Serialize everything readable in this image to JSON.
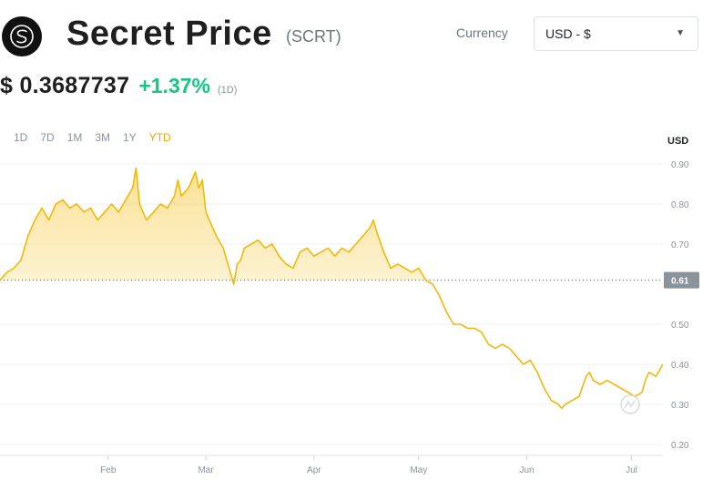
{
  "header": {
    "title": "Secret Price",
    "ticker": "(SCRT)",
    "currency_label": "Currency",
    "currency_value": "USD - $",
    "logo_icon": "secret-network-logo"
  },
  "price": {
    "value": "$ 0.3687737",
    "change": "+1.37%",
    "period": "(1D)"
  },
  "ranges": [
    {
      "label": "1D",
      "active": false
    },
    {
      "label": "7D",
      "active": false
    },
    {
      "label": "1M",
      "active": false
    },
    {
      "label": "3M",
      "active": false
    },
    {
      "label": "1Y",
      "active": false
    },
    {
      "label": "YTD",
      "active": true
    }
  ],
  "colors": {
    "line": "#f0b90b",
    "fill_top": "#f8d66b",
    "badge": "#8a939b",
    "positive": "#16c784",
    "active_tab": "#f0a500"
  },
  "chart_data": {
    "type": "area",
    "ylabel": "USD",
    "ylim": [
      0.18,
      0.93
    ],
    "yticks": [
      0.9,
      0.8,
      0.7,
      0.61,
      0.5,
      0.4,
      0.3,
      0.2
    ],
    "yticks_labels": [
      "0.90",
      "0.80",
      "0.70",
      "0.61",
      "0.50",
      "0.40",
      "0.30",
      "0.20"
    ],
    "reference_value": 0.61,
    "reference_label": "0.61",
    "x_domain": [
      0,
      190
    ],
    "x_ticks": [
      {
        "label": "Feb",
        "x": 31
      },
      {
        "label": "Mar",
        "x": 59
      },
      {
        "label": "Apr",
        "x": 90
      },
      {
        "label": "May",
        "x": 120
      },
      {
        "label": "Jun",
        "x": 151
      },
      {
        "label": "Jul",
        "x": 181
      }
    ],
    "grid": true,
    "series": [
      {
        "x": [
          0,
          2,
          4,
          6,
          8,
          10,
          12,
          14,
          16,
          18,
          20,
          22,
          24,
          26,
          28,
          30,
          32,
          34,
          36,
          38,
          39,
          40,
          41,
          42,
          44,
          46,
          48,
          50,
          51,
          52,
          54,
          56,
          57,
          58,
          59,
          60,
          62,
          64,
          66,
          67,
          68,
          69,
          70,
          72,
          74,
          76,
          78,
          80,
          82,
          84,
          86,
          88,
          90,
          92,
          94,
          96,
          98,
          100,
          102,
          104,
          106,
          107,
          108,
          110,
          112,
          114,
          116,
          118,
          120,
          122,
          124,
          126,
          128,
          130,
          132,
          134,
          136,
          138,
          140,
          142,
          144,
          146,
          148,
          150,
          152,
          154,
          156,
          158,
          160,
          161,
          162,
          164,
          166,
          168,
          169,
          170,
          172,
          174,
          176,
          178,
          180,
          182,
          184,
          185,
          186,
          188,
          190
        ],
        "values": [
          0.61,
          0.63,
          0.64,
          0.66,
          0.72,
          0.76,
          0.79,
          0.76,
          0.8,
          0.81,
          0.79,
          0.8,
          0.78,
          0.79,
          0.76,
          0.78,
          0.8,
          0.78,
          0.81,
          0.84,
          0.89,
          0.8,
          0.78,
          0.76,
          0.78,
          0.8,
          0.79,
          0.82,
          0.86,
          0.82,
          0.84,
          0.88,
          0.84,
          0.86,
          0.78,
          0.76,
          0.72,
          0.69,
          0.63,
          0.6,
          0.65,
          0.66,
          0.69,
          0.7,
          0.71,
          0.69,
          0.7,
          0.67,
          0.65,
          0.64,
          0.68,
          0.69,
          0.67,
          0.68,
          0.69,
          0.67,
          0.69,
          0.68,
          0.7,
          0.72,
          0.74,
          0.76,
          0.73,
          0.68,
          0.64,
          0.65,
          0.64,
          0.63,
          0.64,
          0.61,
          0.6,
          0.57,
          0.53,
          0.5,
          0.5,
          0.49,
          0.49,
          0.48,
          0.45,
          0.44,
          0.45,
          0.44,
          0.42,
          0.4,
          0.41,
          0.38,
          0.34,
          0.31,
          0.3,
          0.29,
          0.3,
          0.31,
          0.32,
          0.37,
          0.38,
          0.36,
          0.35,
          0.36,
          0.35,
          0.34,
          0.33,
          0.32,
          0.33,
          0.36,
          0.38,
          0.37,
          0.4
        ]
      }
    ]
  }
}
